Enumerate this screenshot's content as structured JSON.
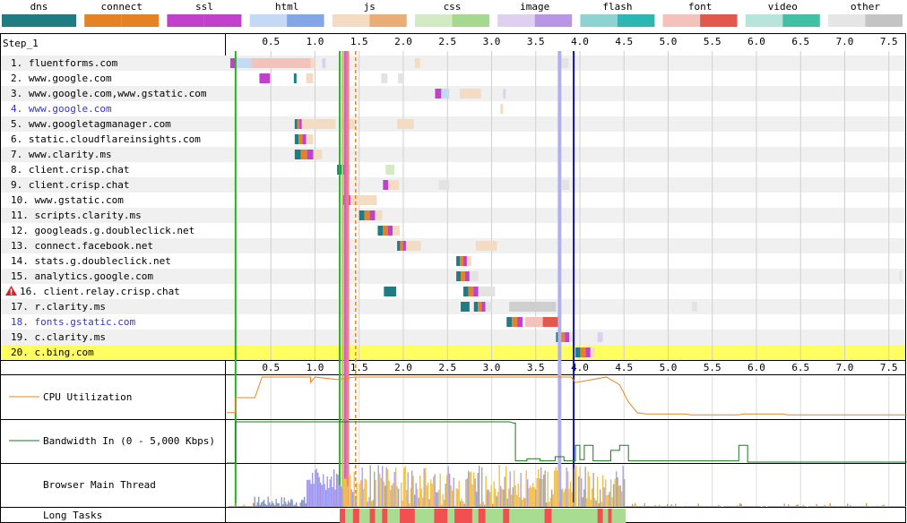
{
  "legend": [
    {
      "name": "dns",
      "c1": "#1f7c83",
      "c2": "#1f7c83"
    },
    {
      "name": "connect",
      "c1": "#e58226",
      "c2": "#e58226"
    },
    {
      "name": "ssl",
      "c1": "#c141cd",
      "c2": "#c141cd"
    },
    {
      "name": "html",
      "c1": "#c4d9f4",
      "c2": "#82a6e6"
    },
    {
      "name": "js",
      "c1": "#f4dcc2",
      "c2": "#e8ae76"
    },
    {
      "name": "css",
      "c1": "#d3ebc4",
      "c2": "#a6d892"
    },
    {
      "name": "image",
      "c1": "#ddd0f0",
      "c2": "#b996e3"
    },
    {
      "name": "flash",
      "c1": "#8fd2d4",
      "c2": "#2cb7b2"
    },
    {
      "name": "font",
      "c1": "#f3c3bb",
      "c2": "#e4584b"
    },
    {
      "name": "video",
      "c1": "#b9e4dc",
      "c2": "#41c0a3"
    },
    {
      "name": "other",
      "c1": "#e6e6e6",
      "c2": "#c4c4c4"
    }
  ],
  "chart_data": {
    "type": "waterfall",
    "title": "Step_1",
    "x_ticks": [
      "0.5",
      "1.0",
      "1.5",
      "2.0",
      "2.5",
      "3.0",
      "3.5",
      "4.0",
      "4.5",
      "5.0",
      "5.5",
      "6.0",
      "6.5",
      "7.0",
      "7.5"
    ],
    "xlim": [
      0,
      7.72
    ],
    "markers": [
      {
        "time": 0.1,
        "color": "#28b028",
        "width": 2
      },
      {
        "time": 1.28,
        "color": "#28b028",
        "width": 2
      },
      {
        "time": 1.31,
        "color": "#c0d040",
        "width": 2
      },
      {
        "time": 1.34,
        "color": "#d560d5",
        "width": 3
      },
      {
        "time": 1.37,
        "color": "#f08080",
        "width": 3
      },
      {
        "time": 1.46,
        "color": "#e8861e",
        "width": 1.5,
        "dashed": true
      },
      {
        "time": 3.77,
        "color": "#b0b0f0",
        "width": 4
      },
      {
        "time": 3.93,
        "color": "#1010a8",
        "width": 2
      }
    ],
    "rows": [
      {
        "label": "1. fluentforms.com",
        "color": "black",
        "segs": [
          [
            0.04,
            0.1,
            "ssl"
          ],
          [
            0.1,
            0.28,
            "htmlL"
          ],
          [
            0.28,
            0.9,
            "jsL"
          ],
          [
            0.28,
            0.95,
            "fontL"
          ],
          [
            0.95,
            1.0,
            "jsL"
          ],
          [
            1.08,
            1.12,
            "imageL"
          ],
          [
            2.13,
            2.19,
            "jsL"
          ],
          [
            3.78,
            3.87,
            "otherL"
          ]
        ]
      },
      {
        "label": "2. www.google.com",
        "color": "black",
        "segs": [
          [
            0.37,
            0.49,
            "ssl"
          ],
          [
            0.76,
            0.79,
            "dns"
          ],
          [
            0.9,
            0.98,
            "jsL"
          ],
          [
            1.75,
            1.82,
            "otherL"
          ],
          [
            1.94,
            2.0,
            "otherL"
          ]
        ]
      },
      {
        "label": "3. www.google.com,www.gstatic.com",
        "color": "black",
        "segs": [
          [
            2.36,
            2.43,
            "ssl"
          ],
          [
            2.43,
            2.52,
            "htmlL"
          ],
          [
            2.64,
            2.88,
            "jsL"
          ],
          [
            3.13,
            3.16,
            "imageL"
          ]
        ]
      },
      {
        "label": "4. www.google.com",
        "color": "blue",
        "segs": [
          [
            3.1,
            3.13,
            "jsL"
          ]
        ]
      },
      {
        "label": "5. www.googletagmanager.com",
        "color": "black",
        "segs": [
          [
            0.77,
            0.85,
            "mix"
          ],
          [
            0.85,
            1.23,
            "jsL"
          ],
          [
            1.3,
            1.46,
            "jsL"
          ],
          [
            1.93,
            2.12,
            "jsL"
          ]
        ]
      },
      {
        "label": "6. static.cloudflareinsights.com",
        "color": "black",
        "segs": [
          [
            0.77,
            0.9,
            "mix"
          ],
          [
            0.9,
            0.98,
            "jsL"
          ]
        ]
      },
      {
        "label": "7. www.clarity.ms",
        "color": "black",
        "segs": [
          [
            0.77,
            0.98,
            "mix"
          ],
          [
            0.98,
            1.08,
            "jsL"
          ]
        ]
      },
      {
        "label": "8. client.crisp.chat",
        "color": "black",
        "segs": [
          [
            1.25,
            1.33,
            "dns"
          ],
          [
            1.33,
            1.4,
            "otherL"
          ],
          [
            1.8,
            1.9,
            "cssL"
          ]
        ]
      },
      {
        "label": "9. client.crisp.chat",
        "color": "black",
        "segs": [
          [
            1.77,
            1.83,
            "ssl"
          ],
          [
            1.83,
            1.95,
            "jsL"
          ],
          [
            2.4,
            2.52,
            "otherL"
          ],
          [
            3.8,
            3.88,
            "otherL"
          ]
        ]
      },
      {
        "label": "10. www.gstatic.com",
        "color": "black",
        "segs": [
          [
            1.3,
            1.4,
            "mix"
          ],
          [
            1.4,
            1.7,
            "jsL"
          ]
        ]
      },
      {
        "label": "11. scripts.clarity.ms",
        "color": "black",
        "segs": [
          [
            1.5,
            1.68,
            "mix"
          ],
          [
            1.68,
            1.76,
            "jsL"
          ]
        ]
      },
      {
        "label": "12. googleads.g.doubleclick.net",
        "color": "black",
        "segs": [
          [
            1.71,
            1.88,
            "mix"
          ],
          [
            1.88,
            1.96,
            "jsL"
          ]
        ]
      },
      {
        "label": "13. connect.facebook.net",
        "color": "black",
        "segs": [
          [
            1.93,
            2.03,
            "mix"
          ],
          [
            2.03,
            2.2,
            "jsL"
          ],
          [
            2.82,
            3.06,
            "jsL"
          ]
        ]
      },
      {
        "label": "14. stats.g.doubleclick.net",
        "color": "black",
        "segs": [
          [
            2.6,
            2.72,
            "mix"
          ],
          [
            2.72,
            2.77,
            "jsL"
          ]
        ]
      },
      {
        "label": "15. analytics.google.com",
        "color": "black",
        "segs": [
          [
            2.6,
            2.75,
            "mix"
          ],
          [
            2.75,
            2.85,
            "otherL"
          ],
          [
            7.62,
            7.65,
            "otherL"
          ]
        ]
      },
      {
        "label": "16. client.relay.crisp.chat",
        "color": "black",
        "warn": true,
        "segs": [
          [
            1.78,
            1.92,
            "dns"
          ],
          [
            2.68,
            2.85,
            "mix"
          ],
          [
            2.85,
            3.04,
            "otherL"
          ]
        ]
      },
      {
        "label": "17. r.clarity.ms",
        "color": "black",
        "segs": [
          [
            2.65,
            2.75,
            "dns"
          ],
          [
            2.8,
            2.93,
            "mix"
          ],
          [
            2.93,
            3.0,
            "otherL"
          ],
          [
            3.2,
            3.73,
            "other2"
          ],
          [
            5.27,
            5.33,
            "otherL"
          ]
        ]
      },
      {
        "label": "18. fonts.gstatic.com",
        "color": "blue",
        "segs": [
          [
            3.17,
            3.35,
            "mix"
          ],
          [
            3.38,
            3.58,
            "fontL"
          ],
          [
            3.58,
            3.76,
            "font"
          ]
        ]
      },
      {
        "label": "19. c.clarity.ms",
        "color": "black",
        "segs": [
          [
            3.73,
            3.88,
            "mix"
          ],
          [
            3.88,
            3.93,
            "otherL"
          ],
          [
            4.2,
            4.26,
            "imageL"
          ]
        ]
      },
      {
        "label": "20. c.bing.com",
        "color": "black",
        "highlight": true,
        "segs": [
          [
            3.95,
            4.12,
            "mix"
          ],
          [
            4.12,
            4.17,
            "jsL"
          ]
        ]
      }
    ],
    "cpu": {
      "label": "CPU Utilization",
      "color": "#e8861e",
      "points": [
        [
          0,
          0.15
        ],
        [
          0.1,
          0.15
        ],
        [
          0.1,
          0.5
        ],
        [
          0.32,
          0.5
        ],
        [
          0.4,
          0.98
        ],
        [
          0.95,
          0.98
        ],
        [
          0.95,
          0.85
        ],
        [
          1.0,
          0.98
        ],
        [
          1.25,
          0.92
        ],
        [
          1.45,
          0.98
        ],
        [
          3.9,
          0.98
        ],
        [
          3.95,
          0.85
        ],
        [
          4.3,
          0.98
        ],
        [
          4.45,
          0.8
        ],
        [
          4.55,
          0.4
        ],
        [
          4.65,
          0.15
        ],
        [
          4.75,
          0.12
        ],
        [
          5.2,
          0.12
        ],
        [
          5.25,
          0.1
        ],
        [
          5.8,
          0.1
        ],
        [
          5.85,
          0.12
        ],
        [
          6.3,
          0.12
        ],
        [
          6.35,
          0.1
        ],
        [
          7.72,
          0.1
        ]
      ]
    },
    "bandwidth": {
      "label": "Bandwidth In (0 - 5,000 Kbps)",
      "color": "#1a7a1a",
      "points": [
        [
          0,
          0
        ],
        [
          0.1,
          0
        ],
        [
          0.1,
          0.98
        ],
        [
          3.2,
          0.98
        ],
        [
          3.25,
          0.95
        ],
        [
          3.27,
          0.95
        ],
        [
          3.27,
          0.05
        ],
        [
          3.4,
          0.05
        ],
        [
          3.4,
          0.1
        ],
        [
          3.55,
          0.1
        ],
        [
          3.55,
          0.05
        ],
        [
          3.72,
          0.05
        ],
        [
          3.72,
          0.15
        ],
        [
          3.82,
          0.15
        ],
        [
          3.82,
          0.05
        ],
        [
          3.95,
          0.05
        ],
        [
          3.95,
          0.42
        ],
        [
          4.0,
          0.42
        ],
        [
          4.0,
          0.08
        ],
        [
          4.05,
          0.08
        ],
        [
          4.05,
          0.42
        ],
        [
          4.15,
          0.42
        ],
        [
          4.15,
          0.05
        ],
        [
          4.35,
          0.05
        ],
        [
          4.35,
          0.3
        ],
        [
          4.45,
          0.3
        ],
        [
          4.45,
          0.42
        ],
        [
          4.55,
          0.42
        ],
        [
          4.55,
          0.05
        ],
        [
          5.8,
          0.05
        ],
        [
          5.8,
          0.42
        ],
        [
          5.9,
          0.42
        ],
        [
          5.9,
          0.02
        ],
        [
          7.72,
          0.02
        ]
      ]
    },
    "main_thread": {
      "label": "Browser Main Thread"
    },
    "long_tasks": {
      "label": "Long Tasks",
      "fill_range": [
        1.28,
        4.52
      ],
      "red": [
        [
          1.28,
          1.34
        ],
        [
          1.43,
          1.5
        ],
        [
          1.62,
          1.68
        ],
        [
          1.76,
          1.82
        ],
        [
          1.96,
          2.13
        ],
        [
          2.35,
          2.5
        ],
        [
          2.58,
          2.78
        ],
        [
          2.85,
          2.93
        ],
        [
          3.13,
          3.2
        ],
        [
          3.6,
          3.68
        ],
        [
          4.2,
          4.26
        ],
        [
          4.32,
          4.36
        ]
      ]
    }
  }
}
